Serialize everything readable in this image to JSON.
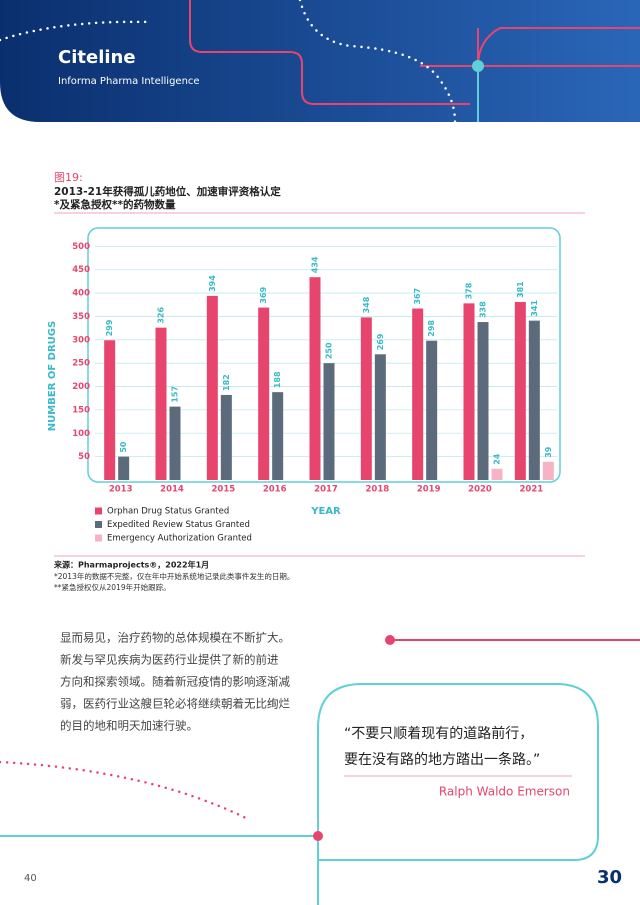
{
  "header": {
    "brand": "Citeline",
    "subtitle": "Informa Pharma Intelligence"
  },
  "figure": {
    "label": "图19:",
    "title_lines": [
      "2013-21年获得孤儿药地位、加速审评资格认定",
      "*及紧急授权**的药物数量"
    ]
  },
  "chart_data": {
    "type": "bar",
    "y_label": "NUMBER OF DRUGS",
    "x_label": "YEAR",
    "categories": [
      "2013",
      "2014",
      "2015",
      "2016",
      "2017",
      "2018",
      "2019",
      "2020",
      "2021"
    ],
    "series": [
      {
        "name": "Orphan Drug Status Granted",
        "color": "#e8456e",
        "values": [
          299,
          326,
          394,
          369,
          434,
          348,
          367,
          378,
          381
        ]
      },
      {
        "name": "Expedited Review Status Granted",
        "color": "#5b6b7c",
        "values": [
          50,
          157,
          182,
          188,
          250,
          269,
          298,
          338,
          341
        ]
      },
      {
        "name": "Emergency Authorization Granted",
        "color": "#f6b3c5",
        "values": [
          null,
          null,
          null,
          null,
          null,
          null,
          null,
          24,
          39
        ]
      }
    ],
    "ylim": [
      0,
      535
    ],
    "yticks": [
      50,
      100,
      150,
      200,
      250,
      300,
      350,
      400,
      450,
      500
    ],
    "grid": true,
    "legend": "bottom-left"
  },
  "source": {
    "line": "来源：Pharmaprojects®，2022年1月",
    "notes": [
      "*2013年的数据不完整，仅在年中开始系统地记录此类事件发生的日期。",
      "**紧急授权仅从2019年开始跟踪。"
    ]
  },
  "body": [
    "显而易见，治疗药物的总体规模在不断扩大。",
    "新发与罕见疾病为医药行业提供了新的前进",
    "方向和探索领域。随着新冠疫情的影响逐渐减",
    "弱，医药行业这艘巨轮必将继续朝着无比绚烂",
    "的目的地和明天加速行驶。"
  ],
  "quote": {
    "lines": [
      "“不要只顺着现有的道路前行，",
      "要在没有路的地方踏出一条路。”"
    ],
    "author": "Ralph Waldo Emerson"
  },
  "footer": {
    "page": "40",
    "badge": "30"
  }
}
